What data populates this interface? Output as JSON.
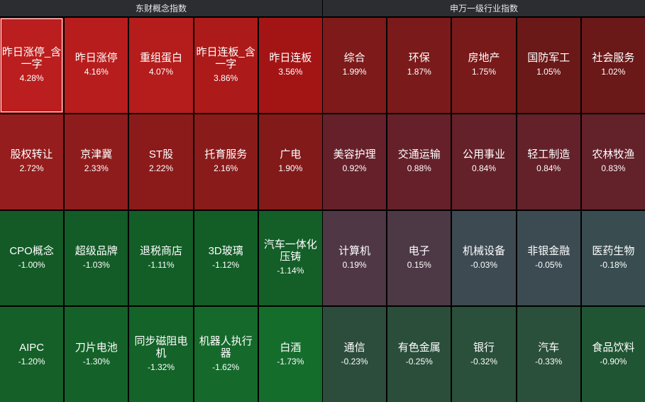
{
  "left_panel": {
    "title": "东财概念指数",
    "tiles": [
      {
        "name": "昨日涨停_含一字",
        "pct": "4.28%",
        "color": "#bb1e1e",
        "selected": true
      },
      {
        "name": "昨日涨停",
        "pct": "4.16%",
        "color": "#b81d1d"
      },
      {
        "name": "重组蛋白",
        "pct": "4.07%",
        "color": "#b51c1c"
      },
      {
        "name": "昨日连板_含一字",
        "pct": "3.86%",
        "color": "#ad1a1a"
      },
      {
        "name": "昨日连板",
        "pct": "3.56%",
        "color": "#a31515"
      },
      {
        "name": "股权转让",
        "pct": "2.72%",
        "color": "#951d1d"
      },
      {
        "name": "京津冀",
        "pct": "2.33%",
        "color": "#8f1c1c"
      },
      {
        "name": "ST股",
        "pct": "2.22%",
        "color": "#8b1b1b"
      },
      {
        "name": "托育服务",
        "pct": "2.16%",
        "color": "#891b1b"
      },
      {
        "name": "广电",
        "pct": "1.90%",
        "color": "#821a1a"
      },
      {
        "name": "CPO概念",
        "pct": "-1.00%",
        "color": "#135a26"
      },
      {
        "name": "超级品牌",
        "pct": "-1.03%",
        "color": "#135b27"
      },
      {
        "name": "退税商店",
        "pct": "-1.11%",
        "color": "#135d27"
      },
      {
        "name": "3D玻璃",
        "pct": "-1.12%",
        "color": "#135d27"
      },
      {
        "name": "汽车一体化压铸",
        "pct": "-1.14%",
        "color": "#145e28"
      },
      {
        "name": "AIPC",
        "pct": "-1.20%",
        "color": "#146028"
      },
      {
        "name": "刀片电池",
        "pct": "-1.30%",
        "color": "#146229"
      },
      {
        "name": "同步磁阻电机",
        "pct": "-1.32%",
        "color": "#146329"
      },
      {
        "name": "机器人执行器",
        "pct": "-1.62%",
        "color": "#156a2b"
      },
      {
        "name": "白酒",
        "pct": "-1.73%",
        "color": "#156d2c"
      }
    ]
  },
  "right_panel": {
    "title": "申万一级行业指数",
    "tiles": [
      {
        "name": "综合",
        "pct": "1.99%",
        "color": "#7e1a1a"
      },
      {
        "name": "环保",
        "pct": "1.87%",
        "color": "#7b1a1a"
      },
      {
        "name": "房地产",
        "pct": "1.75%",
        "color": "#781a1a"
      },
      {
        "name": "国防军工",
        "pct": "1.05%",
        "color": "#6b1818"
      },
      {
        "name": "社会服务",
        "pct": "1.02%",
        "color": "#6a1818"
      },
      {
        "name": "美容护理",
        "pct": "0.92%",
        "color": "#66202a"
      },
      {
        "name": "交通运输",
        "pct": "0.88%",
        "color": "#65202a"
      },
      {
        "name": "公用事业",
        "pct": "0.84%",
        "color": "#64212a"
      },
      {
        "name": "轻工制造",
        "pct": "0.84%",
        "color": "#64212a"
      },
      {
        "name": "农林牧渔",
        "pct": "0.83%",
        "color": "#63212a"
      },
      {
        "name": "计算机",
        "pct": "0.19%",
        "color": "#4f3745"
      },
      {
        "name": "电子",
        "pct": "0.15%",
        "color": "#4d3845"
      },
      {
        "name": "机械设备",
        "pct": "-0.03%",
        "color": "#3d4a52"
      },
      {
        "name": "非银金融",
        "pct": "-0.05%",
        "color": "#3c4b52"
      },
      {
        "name": "医药生物",
        "pct": "-0.18%",
        "color": "#394d50"
      },
      {
        "name": "通信",
        "pct": "-0.23%",
        "color": "#2c4d3c"
      },
      {
        "name": "有色金属",
        "pct": "-0.25%",
        "color": "#2b4e3b"
      },
      {
        "name": "银行",
        "pct": "-0.32%",
        "color": "#2a4f3a"
      },
      {
        "name": "汽车",
        "pct": "-0.33%",
        "color": "#2a4f3a"
      },
      {
        "name": "食品饮料",
        "pct": "-0.90%",
        "color": "#1f5533"
      }
    ]
  }
}
